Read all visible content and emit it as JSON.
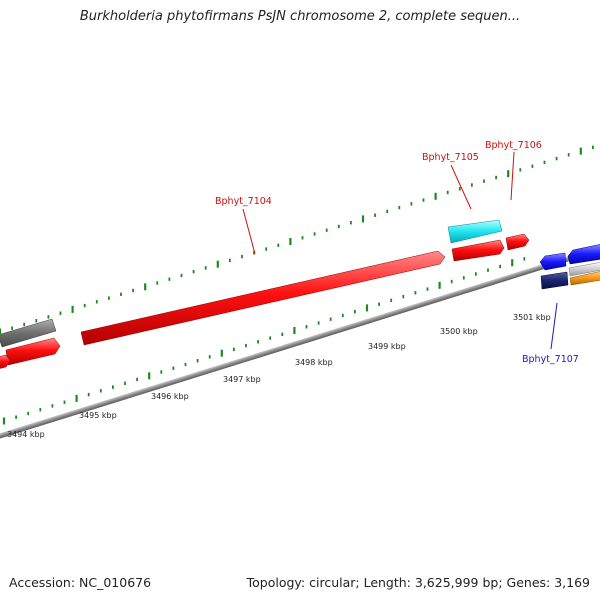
{
  "title": "Burkholderia phytofirmans PsJN chromosome 2, complete sequen...",
  "footer": {
    "accession": "Accession: NC_010676",
    "stats": "Topology: circular; Length: 3,625,999 bp; Genes: 3,169"
  },
  "colors": {
    "forward_gene": "#ff1a1a",
    "highlight_gene": "#22e8f0",
    "backbone": "#8a8a8a",
    "tick": "#1d8a1d",
    "reverse_gene_label": "#1a1acc",
    "forward_gene_label": "#cc1010"
  },
  "axis": {
    "tick_labels": [
      "3494 kbp",
      "3495 kbp",
      "3496 kbp",
      "3497 kbp",
      "3498 kbp",
      "3499 kbp",
      "3500 kbp",
      "3501 kbp"
    ]
  },
  "gene_labels": [
    {
      "name": "Bphyt_7104",
      "strand": "forward"
    },
    {
      "name": "Bphyt_7105",
      "strand": "forward"
    },
    {
      "name": "Bphyt_7106",
      "strand": "forward"
    },
    {
      "name": "Bphyt_7107",
      "strand": "reverse"
    }
  ]
}
